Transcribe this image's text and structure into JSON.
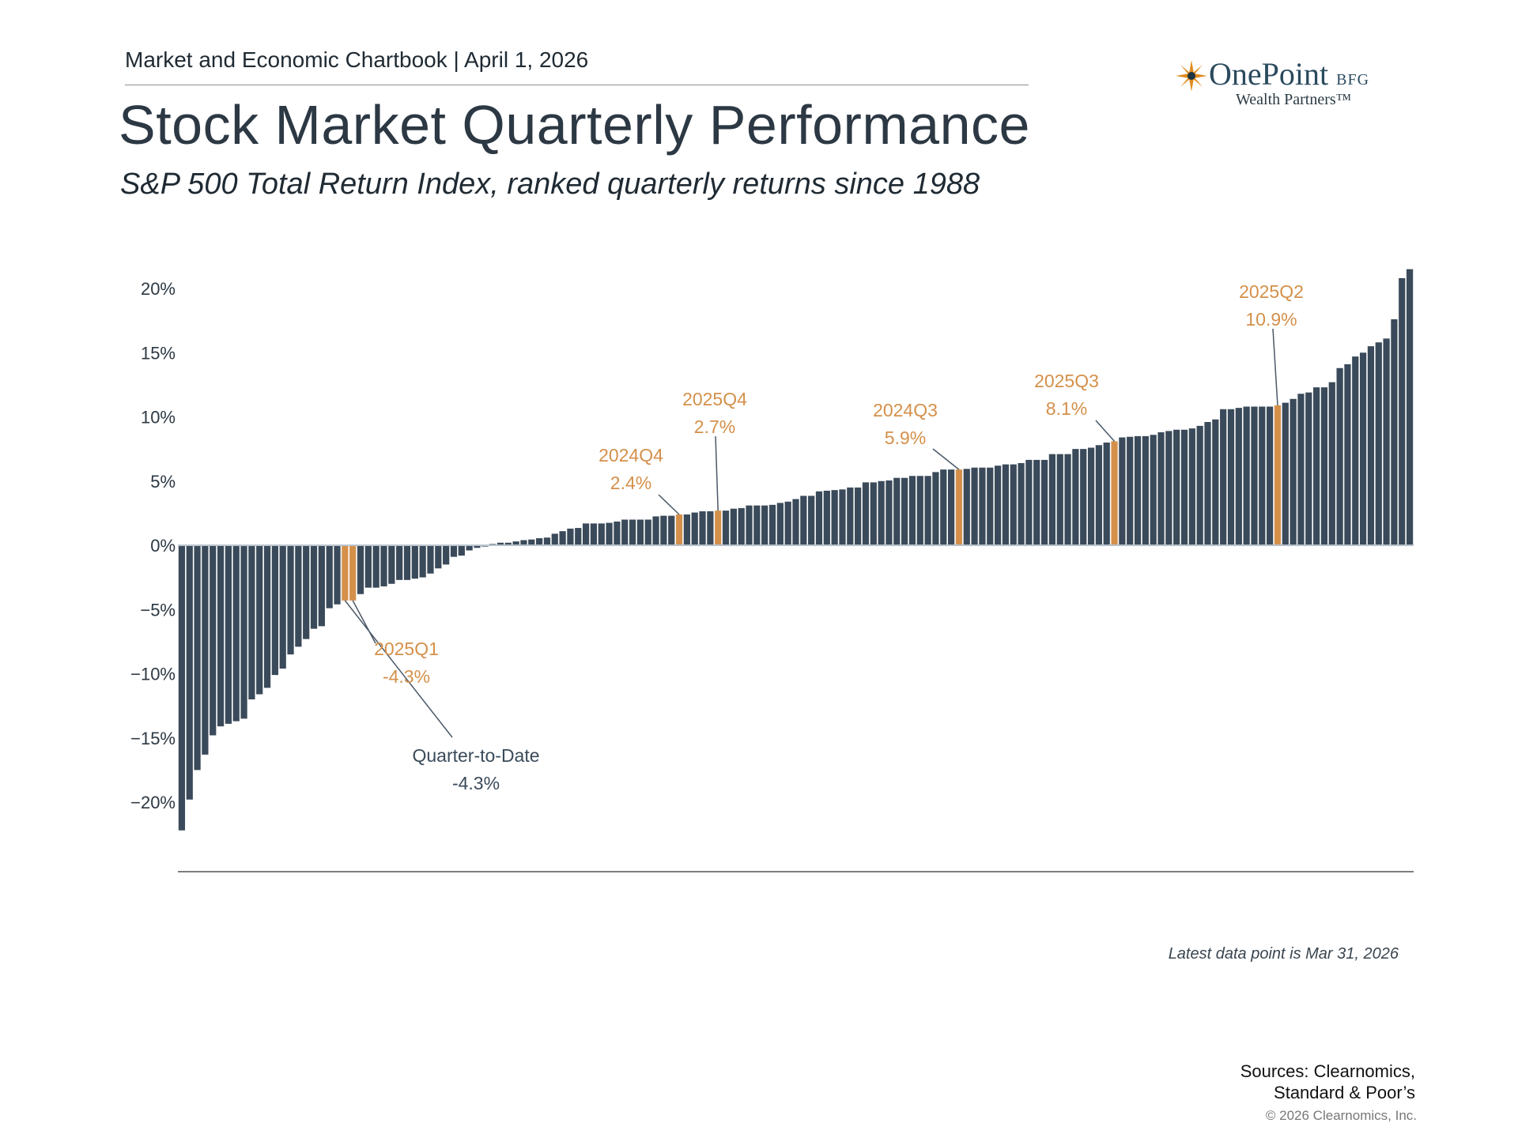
{
  "header": {
    "chartbook": "Market and Economic Chartbook | April 1, 2026",
    "title": "Stock Market Quarterly Performance",
    "subtitle": "S&P 500 Total Return Index, ranked quarterly returns since 1988"
  },
  "logo": {
    "brand": "OnePoint",
    "suffix": "BFG",
    "tagline": "Wealth Partners™"
  },
  "chart_data": {
    "type": "bar",
    "title": "Stock Market Quarterly Performance",
    "xlabel": "",
    "ylabel": "",
    "ylim": [
      -22.5,
      21.5
    ],
    "yticks": [
      20,
      15,
      10,
      5,
      0,
      -5,
      -10,
      -15,
      -20
    ],
    "ytick_labels": [
      "20%",
      "15%",
      "10%",
      "5%",
      "0%",
      "−5%",
      "−10%",
      "−15%",
      "−20%"
    ],
    "grid": false,
    "colors": {
      "bar": "#3a4a5a",
      "highlight": "#d4904a",
      "annotation_dark": "#3a4a5a"
    },
    "values": [
      -22.2,
      -19.8,
      -17.5,
      -16.3,
      -14.8,
      -14.1,
      -13.9,
      -13.7,
      -13.5,
      -12.0,
      -11.6,
      -11.1,
      -10.1,
      -9.6,
      -8.5,
      -7.9,
      -7.3,
      -6.5,
      -6.3,
      -4.9,
      -4.6,
      -4.3,
      -4.3,
      -3.8,
      -3.3,
      -3.3,
      -3.2,
      -3.0,
      -2.7,
      -2.7,
      -2.6,
      -2.5,
      -2.2,
      -1.8,
      -1.5,
      -0.9,
      -0.8,
      -0.4,
      -0.2,
      -0.1,
      0.1,
      0.2,
      0.2,
      0.3,
      0.4,
      0.45,
      0.55,
      0.6,
      0.9,
      1.1,
      1.3,
      1.35,
      1.7,
      1.7,
      1.7,
      1.75,
      1.85,
      2.0,
      2.0,
      2.0,
      2.0,
      2.25,
      2.3,
      2.3,
      2.4,
      2.4,
      2.55,
      2.65,
      2.65,
      2.7,
      2.7,
      2.85,
      2.9,
      3.1,
      3.1,
      3.1,
      3.15,
      3.3,
      3.4,
      3.6,
      3.85,
      3.85,
      4.2,
      4.25,
      4.3,
      4.35,
      4.5,
      4.5,
      4.9,
      4.9,
      5.0,
      5.05,
      5.25,
      5.25,
      5.4,
      5.4,
      5.4,
      5.7,
      5.9,
      5.9,
      5.9,
      5.95,
      6.05,
      6.05,
      6.05,
      6.2,
      6.3,
      6.3,
      6.4,
      6.65,
      6.65,
      6.65,
      7.1,
      7.1,
      7.1,
      7.5,
      7.5,
      7.6,
      7.8,
      8.0,
      8.1,
      8.4,
      8.45,
      8.5,
      8.5,
      8.6,
      8.8,
      8.9,
      9.0,
      9.0,
      9.1,
      9.3,
      9.6,
      9.8,
      10.6,
      10.6,
      10.7,
      10.8,
      10.8,
      10.8,
      10.8,
      10.9,
      11.1,
      11.4,
      11.8,
      11.9,
      12.3,
      12.3,
      12.7,
      13.8,
      14.1,
      14.7,
      15.0,
      15.5,
      15.8,
      16.1,
      17.6,
      20.8,
      21.5
    ],
    "annotations": [
      {
        "label": "Quarter-to-Date",
        "value_text": "-4.3%",
        "rank_index": 21,
        "style": "dark"
      },
      {
        "label": "2025Q1",
        "value_text": "-4.3%",
        "rank_index": 22,
        "style": "highlight"
      },
      {
        "label": "2024Q4",
        "value_text": "2.4%",
        "rank_index": 64,
        "style": "highlight"
      },
      {
        "label": "2025Q4",
        "value_text": "2.7%",
        "rank_index": 69,
        "style": "highlight"
      },
      {
        "label": "2024Q3",
        "value_text": "5.9%",
        "rank_index": 100,
        "style": "highlight"
      },
      {
        "label": "2025Q3",
        "value_text": "8.1%",
        "rank_index": 120,
        "style": "highlight"
      },
      {
        "label": "2025Q2",
        "value_text": "10.9%",
        "rank_index": 141,
        "style": "highlight"
      }
    ]
  },
  "footer": {
    "latest": "Latest data point is Mar 31, 2026",
    "sources_line1": "Sources: Clearnomics,",
    "sources_line2": "Standard & Poor’s",
    "copyright": "© 2026 Clearnomics, Inc."
  }
}
